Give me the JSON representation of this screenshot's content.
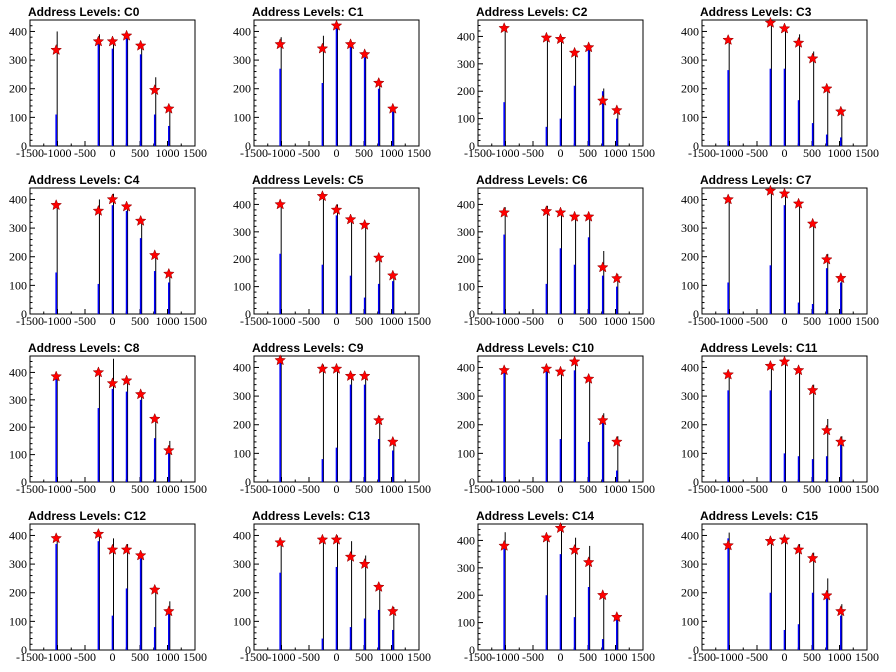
{
  "chart_data": [
    {
      "type": "bar",
      "title": "Address Levels: C0",
      "xlim": [
        -1500,
        1500
      ],
      "ylim": [
        0,
        440
      ],
      "xticks": [
        -1500,
        -1000,
        -500,
        0,
        500,
        1000,
        1500
      ],
      "yticks": [
        0,
        100,
        200,
        300,
        400
      ],
      "peaks": [
        {
          "x": -1024,
          "blue": 110,
          "black": 400,
          "marker": 335
        },
        {
          "x": -256,
          "blue": 380,
          "black": 390,
          "marker": 365
        },
        {
          "x": 0,
          "blue": 340,
          "black": 375,
          "marker": 365
        },
        {
          "x": 256,
          "blue": 380,
          "black": 380,
          "marker": 385
        },
        {
          "x": 512,
          "blue": 320,
          "black": 350,
          "marker": 350
        },
        {
          "x": 768,
          "blue": 110,
          "black": 240,
          "marker": 195
        },
        {
          "x": 1024,
          "blue": 70,
          "black": 140,
          "marker": 130
        }
      ]
    },
    {
      "type": "bar",
      "title": "Address Levels: C1",
      "xlim": [
        -1500,
        1500
      ],
      "ylim": [
        0,
        440
      ],
      "xticks": [
        -1500,
        -1000,
        -500,
        0,
        500,
        1000,
        1500
      ],
      "yticks": [
        0,
        100,
        200,
        300,
        400
      ],
      "peaks": [
        {
          "x": -1024,
          "blue": 270,
          "black": 380,
          "marker": 355
        },
        {
          "x": -256,
          "blue": 220,
          "black": 385,
          "marker": 340
        },
        {
          "x": 0,
          "blue": 420,
          "black": 430,
          "marker": 420
        },
        {
          "x": 256,
          "blue": 350,
          "black": 360,
          "marker": 355
        },
        {
          "x": 512,
          "blue": 310,
          "black": 330,
          "marker": 320
        },
        {
          "x": 768,
          "blue": 200,
          "black": 225,
          "marker": 220
        },
        {
          "x": 1024,
          "blue": 120,
          "black": 130,
          "marker": 130
        }
      ]
    },
    {
      "type": "bar",
      "title": "Address Levels: C2",
      "xlim": [
        -1500,
        1500
      ],
      "ylim": [
        0,
        460
      ],
      "xticks": [
        -1500,
        -1000,
        -500,
        0,
        500,
        1000,
        1500
      ],
      "yticks": [
        0,
        100,
        200,
        300,
        400
      ],
      "peaks": [
        {
          "x": -1024,
          "blue": 160,
          "black": 440,
          "marker": 430
        },
        {
          "x": -256,
          "blue": 70,
          "black": 400,
          "marker": 395
        },
        {
          "x": 0,
          "blue": 100,
          "black": 400,
          "marker": 390
        },
        {
          "x": 256,
          "blue": 220,
          "black": 350,
          "marker": 340
        },
        {
          "x": 512,
          "blue": 360,
          "black": 370,
          "marker": 360
        },
        {
          "x": 768,
          "blue": 200,
          "black": 210,
          "marker": 165
        },
        {
          "x": 1024,
          "blue": 100,
          "black": 140,
          "marker": 130
        }
      ]
    },
    {
      "type": "bar",
      "title": "Address Levels: C3",
      "xlim": [
        -1500,
        1500
      ],
      "ylim": [
        0,
        440
      ],
      "xticks": [
        -1500,
        -1000,
        -500,
        0,
        500,
        1000,
        1500
      ],
      "yticks": [
        0,
        100,
        200,
        300,
        400
      ],
      "peaks": [
        {
          "x": -1024,
          "blue": 265,
          "black": 375,
          "marker": 370
        },
        {
          "x": -256,
          "blue": 270,
          "black": 440,
          "marker": 430
        },
        {
          "x": 0,
          "blue": 270,
          "black": 420,
          "marker": 410
        },
        {
          "x": 256,
          "blue": 160,
          "black": 390,
          "marker": 360
        },
        {
          "x": 512,
          "blue": 80,
          "black": 330,
          "marker": 305
        },
        {
          "x": 768,
          "blue": 40,
          "black": 200,
          "marker": 200
        },
        {
          "x": 1024,
          "blue": 30,
          "black": 130,
          "marker": 120
        }
      ]
    },
    {
      "type": "bar",
      "title": "Address Levels: C4",
      "xlim": [
        -1500,
        1500
      ],
      "ylim": [
        0,
        440
      ],
      "xticks": [
        -1500,
        -1000,
        -500,
        0,
        500,
        1000,
        1500
      ],
      "yticks": [
        0,
        100,
        200,
        300,
        400
      ],
      "peaks": [
        {
          "x": -1024,
          "blue": 145,
          "black": 380,
          "marker": 380
        },
        {
          "x": -256,
          "blue": 105,
          "black": 400,
          "marker": 360
        },
        {
          "x": 0,
          "blue": 380,
          "black": 420,
          "marker": 400
        },
        {
          "x": 256,
          "blue": 360,
          "black": 380,
          "marker": 375
        },
        {
          "x": 512,
          "blue": 265,
          "black": 330,
          "marker": 325
        },
        {
          "x": 768,
          "blue": 150,
          "black": 200,
          "marker": 205
        },
        {
          "x": 1024,
          "blue": 110,
          "black": 130,
          "marker": 140
        }
      ]
    },
    {
      "type": "bar",
      "title": "Address Levels: C5",
      "xlim": [
        -1500,
        1500
      ],
      "ylim": [
        0,
        460
      ],
      "xticks": [
        -1500,
        -1000,
        -500,
        0,
        500,
        1000,
        1500
      ],
      "yticks": [
        0,
        100,
        200,
        300,
        400
      ],
      "peaks": [
        {
          "x": -1024,
          "blue": 220,
          "black": 400,
          "marker": 400
        },
        {
          "x": -256,
          "blue": 180,
          "black": 440,
          "marker": 430
        },
        {
          "x": 0,
          "blue": 360,
          "black": 400,
          "marker": 380
        },
        {
          "x": 256,
          "blue": 140,
          "black": 350,
          "marker": 345
        },
        {
          "x": 512,
          "blue": 60,
          "black": 320,
          "marker": 325
        },
        {
          "x": 768,
          "blue": 110,
          "black": 200,
          "marker": 205
        },
        {
          "x": 1024,
          "blue": 120,
          "black": 150,
          "marker": 140
        }
      ]
    },
    {
      "type": "bar",
      "title": "Address Levels: C6",
      "xlim": [
        -1500,
        1500
      ],
      "ylim": [
        0,
        460
      ],
      "xticks": [
        -1500,
        -1000,
        -500,
        0,
        500,
        1000,
        1500
      ],
      "yticks": [
        0,
        100,
        200,
        300,
        400
      ],
      "peaks": [
        {
          "x": -1024,
          "blue": 290,
          "black": 390,
          "marker": 370
        },
        {
          "x": -256,
          "blue": 110,
          "black": 395,
          "marker": 375
        },
        {
          "x": 0,
          "blue": 240,
          "black": 380,
          "marker": 370
        },
        {
          "x": 256,
          "blue": 180,
          "black": 360,
          "marker": 355
        },
        {
          "x": 512,
          "blue": 280,
          "black": 360,
          "marker": 355
        },
        {
          "x": 768,
          "blue": 140,
          "black": 230,
          "marker": 170
        },
        {
          "x": 1024,
          "blue": 100,
          "black": 145,
          "marker": 130
        }
      ]
    },
    {
      "type": "bar",
      "title": "Address Levels: C7",
      "xlim": [
        -1500,
        1500
      ],
      "ylim": [
        0,
        440
      ],
      "xticks": [
        -1500,
        -1000,
        -500,
        0,
        500,
        1000,
        1500
      ],
      "yticks": [
        0,
        100,
        200,
        300,
        400
      ],
      "peaks": [
        {
          "x": -1024,
          "blue": 110,
          "black": 410,
          "marker": 400
        },
        {
          "x": -256,
          "blue": 170,
          "black": 440,
          "marker": 430
        },
        {
          "x": 0,
          "blue": 380,
          "black": 420,
          "marker": 420
        },
        {
          "x": 256,
          "blue": 40,
          "black": 390,
          "marker": 385
        },
        {
          "x": 512,
          "blue": 35,
          "black": 320,
          "marker": 315
        },
        {
          "x": 768,
          "blue": 160,
          "black": 210,
          "marker": 190
        },
        {
          "x": 1024,
          "blue": 110,
          "black": 130,
          "marker": 125
        }
      ]
    },
    {
      "type": "bar",
      "title": "Address Levels: C8",
      "xlim": [
        -1500,
        1500
      ],
      "ylim": [
        0,
        460
      ],
      "xticks": [
        -1500,
        -1000,
        -500,
        0,
        500,
        1000,
        1500
      ],
      "yticks": [
        0,
        100,
        200,
        300,
        400
      ],
      "peaks": [
        {
          "x": -1024,
          "blue": 380,
          "black": 390,
          "marker": 385
        },
        {
          "x": -256,
          "blue": 270,
          "black": 410,
          "marker": 400
        },
        {
          "x": 0,
          "blue": 340,
          "black": 450,
          "marker": 360
        },
        {
          "x": 256,
          "blue": 330,
          "black": 370,
          "marker": 370
        },
        {
          "x": 512,
          "blue": 300,
          "black": 330,
          "marker": 320
        },
        {
          "x": 768,
          "blue": 160,
          "black": 240,
          "marker": 230
        },
        {
          "x": 1024,
          "blue": 120,
          "black": 150,
          "marker": 115
        }
      ]
    },
    {
      "type": "bar",
      "title": "Address Levels: C9",
      "xlim": [
        -1500,
        1500
      ],
      "ylim": [
        0,
        440
      ],
      "xticks": [
        -1500,
        -1000,
        -500,
        0,
        500,
        1000,
        1500
      ],
      "yticks": [
        0,
        100,
        200,
        300,
        400
      ],
      "peaks": [
        {
          "x": -1024,
          "blue": 420,
          "black": 440,
          "marker": 425
        },
        {
          "x": -256,
          "blue": 80,
          "black": 410,
          "marker": 395
        },
        {
          "x": 0,
          "blue": 120,
          "black": 400,
          "marker": 395
        },
        {
          "x": 256,
          "blue": 340,
          "black": 380,
          "marker": 370
        },
        {
          "x": 512,
          "blue": 340,
          "black": 370,
          "marker": 370
        },
        {
          "x": 768,
          "blue": 150,
          "black": 230,
          "marker": 215
        },
        {
          "x": 1024,
          "blue": 110,
          "black": 140,
          "marker": 140
        }
      ]
    },
    {
      "type": "bar",
      "title": "Address Levels: C10",
      "xlim": [
        -1500,
        1500
      ],
      "ylim": [
        0,
        440
      ],
      "xticks": [
        -1500,
        -1000,
        -500,
        0,
        500,
        1000,
        1500
      ],
      "yticks": [
        0,
        100,
        200,
        300,
        400
      ],
      "peaks": [
        {
          "x": -1024,
          "blue": 390,
          "black": 400,
          "marker": 390
        },
        {
          "x": -256,
          "blue": 390,
          "black": 400,
          "marker": 395
        },
        {
          "x": 0,
          "blue": 150,
          "black": 390,
          "marker": 385
        },
        {
          "x": 256,
          "blue": 390,
          "black": 410,
          "marker": 420
        },
        {
          "x": 512,
          "blue": 140,
          "black": 360,
          "marker": 360
        },
        {
          "x": 768,
          "blue": 230,
          "black": 240,
          "marker": 215
        },
        {
          "x": 1024,
          "blue": 40,
          "black": 160,
          "marker": 140
        }
      ]
    },
    {
      "type": "bar",
      "title": "Address Levels: C11",
      "xlim": [
        -1500,
        1500
      ],
      "ylim": [
        0,
        440
      ],
      "xticks": [
        -1500,
        -1000,
        -500,
        0,
        500,
        1000,
        1500
      ],
      "yticks": [
        0,
        100,
        200,
        300,
        400
      ],
      "peaks": [
        {
          "x": -1024,
          "blue": 320,
          "black": 380,
          "marker": 375
        },
        {
          "x": -256,
          "blue": 320,
          "black": 410,
          "marker": 405
        },
        {
          "x": 0,
          "blue": 100,
          "black": 420,
          "marker": 420
        },
        {
          "x": 256,
          "blue": 90,
          "black": 400,
          "marker": 390
        },
        {
          "x": 512,
          "blue": 80,
          "black": 340,
          "marker": 320
        },
        {
          "x": 768,
          "blue": 90,
          "black": 220,
          "marker": 180
        },
        {
          "x": 1024,
          "blue": 130,
          "black": 160,
          "marker": 140
        }
      ]
    },
    {
      "type": "bar",
      "title": "Address Levels: C12",
      "xlim": [
        -1500,
        1500
      ],
      "ylim": [
        0,
        440
      ],
      "xticks": [
        -1500,
        -1000,
        -500,
        0,
        500,
        1000,
        1500
      ],
      "yticks": [
        0,
        100,
        200,
        300,
        400
      ],
      "peaks": [
        {
          "x": -1024,
          "blue": 370,
          "black": 400,
          "marker": 390
        },
        {
          "x": -256,
          "blue": 380,
          "black": 410,
          "marker": 405
        },
        {
          "x": 0,
          "blue": 120,
          "black": 390,
          "marker": 350
        },
        {
          "x": 256,
          "blue": 215,
          "black": 370,
          "marker": 350
        },
        {
          "x": 512,
          "blue": 320,
          "black": 340,
          "marker": 330
        },
        {
          "x": 768,
          "blue": 80,
          "black": 220,
          "marker": 210
        },
        {
          "x": 1024,
          "blue": 130,
          "black": 170,
          "marker": 135
        }
      ]
    },
    {
      "type": "bar",
      "title": "Address Levels: C13",
      "xlim": [
        -1500,
        1500
      ],
      "ylim": [
        0,
        440
      ],
      "xticks": [
        -1500,
        -1000,
        -500,
        0,
        500,
        1000,
        1500
      ],
      "yticks": [
        0,
        100,
        200,
        300,
        400
      ],
      "peaks": [
        {
          "x": -1024,
          "blue": 270,
          "black": 380,
          "marker": 375
        },
        {
          "x": -256,
          "blue": 40,
          "black": 390,
          "marker": 385
        },
        {
          "x": 0,
          "blue": 290,
          "black": 400,
          "marker": 385
        },
        {
          "x": 256,
          "blue": 80,
          "black": 380,
          "marker": 325
        },
        {
          "x": 512,
          "blue": 110,
          "black": 330,
          "marker": 300
        },
        {
          "x": 768,
          "blue": 140,
          "black": 230,
          "marker": 220
        },
        {
          "x": 1024,
          "blue": 70,
          "black": 150,
          "marker": 135
        }
      ]
    },
    {
      "type": "bar",
      "title": "Address Levels: C14",
      "xlim": [
        -1500,
        1500
      ],
      "ylim": [
        0,
        460
      ],
      "xticks": [
        -1500,
        -1000,
        -500,
        0,
        500,
        1000,
        1500
      ],
      "yticks": [
        0,
        100,
        200,
        300,
        400
      ],
      "peaks": [
        {
          "x": -1024,
          "blue": 370,
          "black": 430,
          "marker": 380
        },
        {
          "x": -256,
          "blue": 200,
          "black": 420,
          "marker": 410
        },
        {
          "x": 0,
          "blue": 350,
          "black": 460,
          "marker": 445
        },
        {
          "x": 256,
          "blue": 120,
          "black": 410,
          "marker": 365
        },
        {
          "x": 512,
          "blue": 230,
          "black": 380,
          "marker": 320
        },
        {
          "x": 768,
          "blue": 40,
          "black": 190,
          "marker": 200
        },
        {
          "x": 1024,
          "blue": 120,
          "black": 130,
          "marker": 120
        }
      ]
    },
    {
      "type": "bar",
      "title": "Address Levels: C15",
      "xlim": [
        -1500,
        1500
      ],
      "ylim": [
        0,
        440
      ],
      "xticks": [
        -1500,
        -1000,
        -500,
        0,
        500,
        1000,
        1500
      ],
      "yticks": [
        0,
        100,
        200,
        300,
        400
      ],
      "peaks": [
        {
          "x": -1024,
          "blue": 390,
          "black": 410,
          "marker": 365
        },
        {
          "x": -256,
          "blue": 200,
          "black": 390,
          "marker": 380
        },
        {
          "x": 0,
          "blue": 70,
          "black": 390,
          "marker": 385
        },
        {
          "x": 256,
          "blue": 90,
          "black": 370,
          "marker": 350
        },
        {
          "x": 512,
          "blue": 200,
          "black": 340,
          "marker": 320
        },
        {
          "x": 768,
          "blue": 180,
          "black": 250,
          "marker": 190
        },
        {
          "x": 1024,
          "blue": 120,
          "black": 160,
          "marker": 135
        }
      ]
    }
  ],
  "colors": {
    "blue": "#0000ff",
    "black": "#000000",
    "marker": "#ff0000",
    "frame": "#000000"
  }
}
